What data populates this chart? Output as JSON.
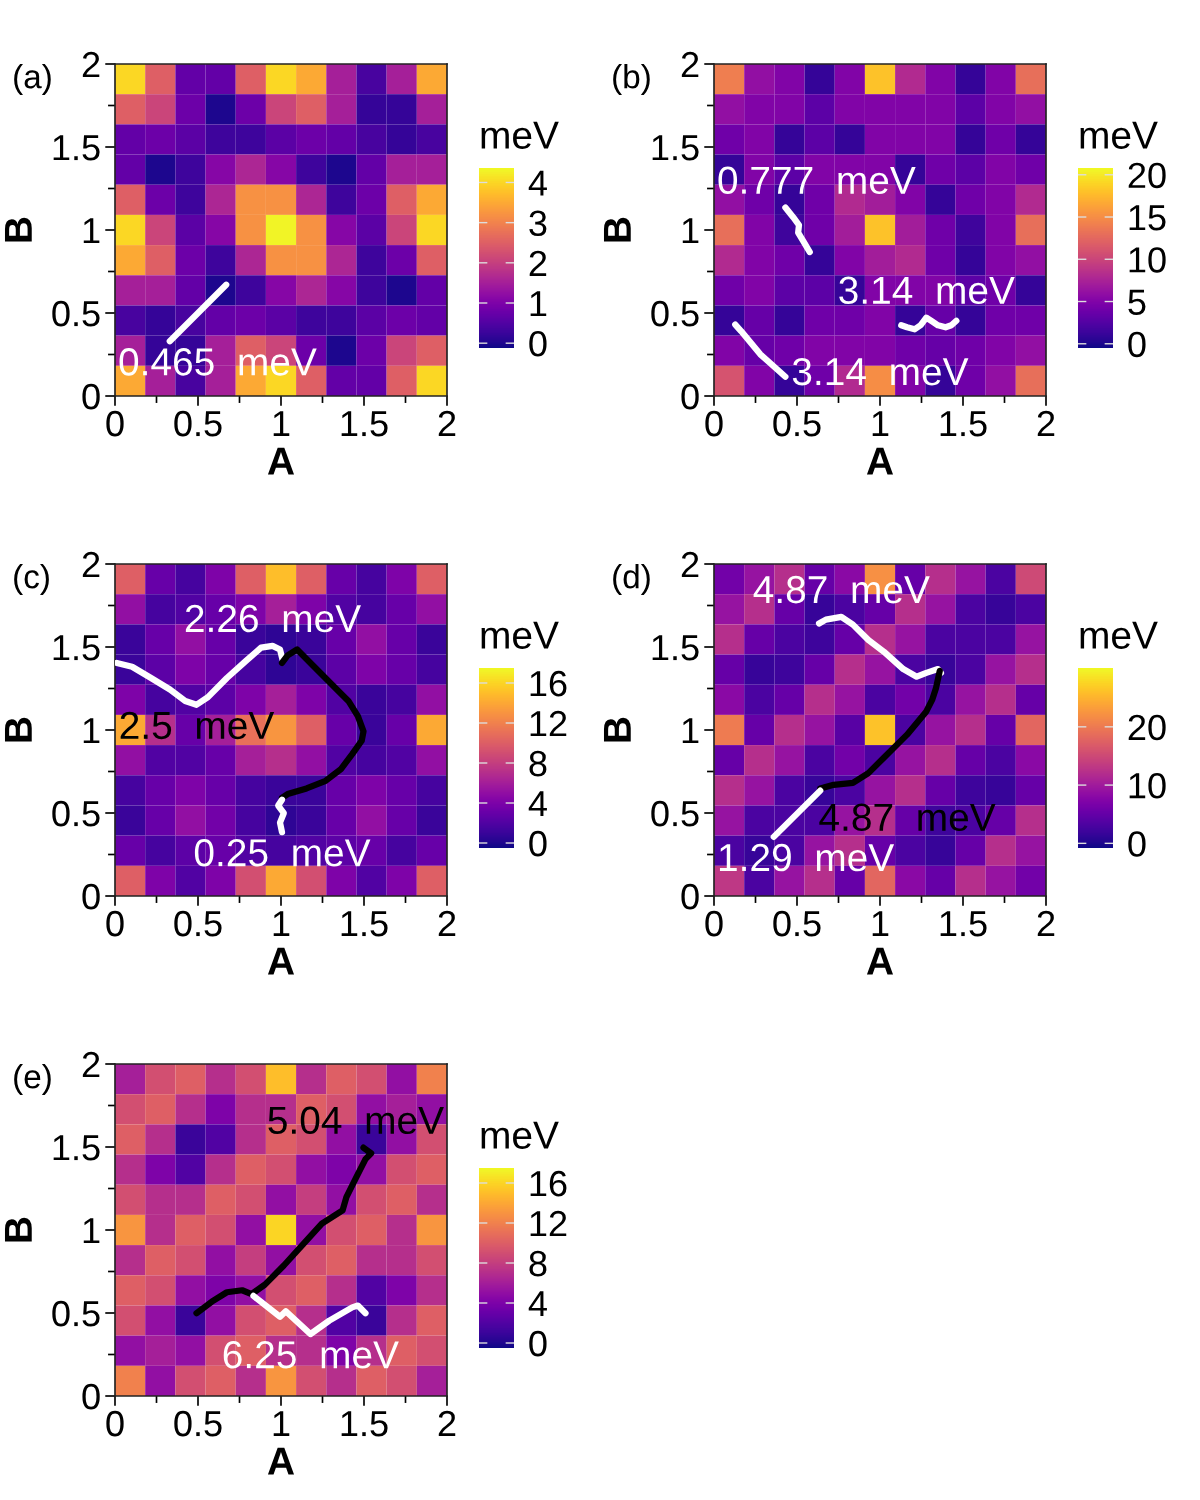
{
  "chart_data": [
    {
      "type": "heatmap",
      "title": "(a)",
      "xlabel": "A",
      "ylabel": "B",
      "clabel": "meV",
      "xlim": [
        0,
        2
      ],
      "ylim": [
        0,
        2
      ],
      "xticks": [
        0,
        {
          "value": 0.25,
          "label": null
        },
        0.5,
        {
          "value": 0.75,
          "label": null
        },
        1,
        {
          "value": 1.25,
          "label": null
        },
        1.5,
        {
          "value": 1.75,
          "label": null
        },
        2
      ],
      "yticks": [
        0,
        {
          "value": 0.25,
          "label": null
        },
        0.5,
        {
          "value": 0.75,
          "label": null
        },
        1,
        {
          "value": 1.25,
          "label": null
        },
        1.5,
        {
          "value": 1.75,
          "label": null
        },
        2
      ],
      "clim": [
        -0.12,
        4.36
      ],
      "cticks": [
        0,
        1,
        2,
        3,
        4
      ],
      "cells": [
        [
          4.0,
          2.5,
          0.7,
          0.7,
          2.5,
          4.0,
          3.5,
          1.5,
          0.4,
          1.5,
          3.5
        ],
        [
          2.5,
          2.1,
          0.8,
          0.0,
          0.8,
          2.1,
          2.5,
          1.5,
          0.2,
          0.2,
          1.5
        ],
        [
          0.7,
          0.8,
          0.6,
          0.3,
          0.3,
          0.6,
          0.8,
          0.7,
          0.4,
          0.2,
          0.4
        ],
        [
          0.7,
          0.0,
          0.3,
          1.1,
          1.6,
          1.1,
          0.3,
          0.0,
          0.7,
          1.5,
          1.5
        ],
        [
          2.5,
          0.8,
          0.3,
          1.6,
          3.2,
          3.2,
          1.6,
          0.3,
          0.8,
          2.5,
          3.5
        ],
        [
          4.0,
          2.1,
          0.6,
          1.1,
          3.2,
          4.3,
          3.2,
          1.1,
          0.6,
          2.1,
          4.0
        ],
        [
          3.5,
          2.5,
          0.8,
          0.3,
          1.6,
          3.2,
          3.2,
          1.6,
          0.3,
          0.8,
          2.5
        ],
        [
          1.5,
          1.5,
          0.7,
          0.0,
          0.3,
          1.1,
          1.6,
          1.1,
          0.3,
          0.0,
          0.7
        ],
        [
          0.4,
          0.2,
          0.4,
          0.7,
          0.8,
          0.6,
          0.3,
          0.3,
          0.6,
          0.8,
          0.7
        ],
        [
          1.5,
          0.2,
          0.2,
          1.5,
          2.5,
          2.1,
          0.8,
          0.0,
          0.8,
          2.1,
          2.5
        ],
        [
          3.5,
          1.5,
          0.4,
          1.5,
          3.5,
          4.0,
          2.5,
          0.7,
          0.7,
          2.5,
          4.0
        ]
      ],
      "series": [
        {
          "type": "line",
          "color": "#ffffff",
          "x": [
            0.33,
            0.67
          ],
          "values": [
            0.33,
            0.67
          ]
        }
      ],
      "annotations": [
        {
          "text": "0.465  meV",
          "x": 0.33,
          "y": 0.33
        }
      ]
    },
    {
      "type": "heatmap",
      "title": "(b)",
      "xlabel": "A",
      "ylabel": "B",
      "clabel": "meV",
      "xlim": [
        0,
        2
      ],
      "ylim": [
        0,
        2
      ],
      "xticks": [
        0,
        {
          "value": 0.25,
          "label": null
        },
        0.5,
        {
          "value": 0.75,
          "label": null
        },
        1,
        {
          "value": 1.25,
          "label": null
        },
        1.5,
        {
          "value": 1.75,
          "label": null
        },
        2
      ],
      "yticks": [
        0,
        {
          "value": 0.25,
          "label": null
        },
        0.5,
        {
          "value": 0.75,
          "label": null
        },
        1,
        {
          "value": 1.25,
          "label": null
        },
        1.5,
        {
          "value": 1.75,
          "label": null
        },
        2
      ],
      "clim": [
        -0.5,
        20.8
      ],
      "cticks": [
        0,
        5,
        10,
        15,
        20
      ],
      "cells": [
        [
          14,
          6,
          5,
          1,
          5,
          18,
          8,
          5,
          1,
          5,
          13
        ],
        [
          6,
          5,
          5,
          3,
          5,
          5,
          5,
          5,
          3,
          5,
          6
        ],
        [
          4,
          5,
          1,
          3,
          1,
          5,
          5,
          5,
          1,
          4,
          1
        ],
        [
          1,
          5,
          3,
          5,
          5,
          5,
          1,
          4,
          3,
          5,
          4
        ],
        [
          6,
          4,
          1,
          4,
          8,
          7,
          5,
          1,
          4,
          5,
          8
        ],
        [
          13,
          5,
          1.5,
          4,
          7,
          18,
          7,
          4,
          1.5,
          5,
          13
        ],
        [
          8,
          5,
          4,
          1,
          5,
          7,
          8,
          4,
          1,
          5,
          6
        ],
        [
          4,
          5,
          3,
          3,
          1,
          5,
          5,
          5,
          3,
          4,
          1
        ],
        [
          1,
          3.5,
          1,
          4,
          4,
          5,
          1,
          3.5,
          1,
          4,
          4
        ],
        [
          5,
          3.5,
          4,
          5,
          5,
          5,
          4,
          3.5,
          4,
          5,
          6
        ],
        [
          11,
          5,
          1,
          4,
          8,
          15,
          5,
          1,
          4,
          6,
          13
        ]
      ],
      "series": [
        {
          "type": "line",
          "color": "#ffffff",
          "x": [
            0.43,
            0.477,
            0.512,
            0.507,
            0.535,
            0.577
          ],
          "values": [
            1.135,
            1.077,
            1.03,
            0.984,
            0.937,
            0.867
          ]
        },
        {
          "type": "line",
          "color": "#ffffff",
          "x": [
            1.128,
            1.163,
            1.209,
            1.244,
            1.279,
            1.314,
            1.349,
            1.395,
            1.43,
            1.46
          ],
          "values": [
            0.426,
            0.414,
            0.402,
            0.426,
            0.472,
            0.449,
            0.426,
            0.414,
            0.426,
            0.453
          ]
        },
        {
          "type": "line",
          "color": "#ffffff",
          "x": [
            0.128,
            0.163,
            0.279,
            0.43
          ],
          "values": [
            0.43,
            0.391,
            0.251,
            0.116
          ]
        }
      ],
      "annotations": [
        {
          "text": "0.777  meV",
          "x": 0.43,
          "y": 1.135
        },
        {
          "text": "3.14  meV",
          "x": 1.279,
          "y": 0.472
        },
        {
          "text": "3.14  meV",
          "x": 0.43,
          "y": 0.116
        }
      ]
    },
    {
      "type": "heatmap",
      "title": "(c)",
      "xlabel": "A",
      "ylabel": "B",
      "clabel": "meV",
      "xlim": [
        0,
        2
      ],
      "ylim": [
        0,
        2
      ],
      "xticks": [
        0,
        {
          "value": 0.25,
          "label": null
        },
        0.5,
        {
          "value": 0.75,
          "label": null
        },
        1,
        {
          "value": 1.25,
          "label": null
        },
        1.5,
        {
          "value": 1.75,
          "label": null
        },
        2
      ],
      "yticks": [
        0,
        {
          "value": 0.25,
          "label": null
        },
        0.5,
        {
          "value": 0.75,
          "label": null
        },
        1,
        {
          "value": 1.25,
          "label": null
        },
        1.5,
        {
          "value": 1.75,
          "label": null
        },
        2
      ],
      "clim": [
        -0.5,
        17.5
      ],
      "cticks": [
        0,
        4,
        8,
        12,
        16
      ],
      "cells": [
        [
          10,
          3,
          1.5,
          4,
          10,
          15,
          10,
          3,
          1.5,
          4,
          10
        ],
        [
          5,
          1.5,
          2,
          3,
          4,
          6,
          4,
          2,
          1.5,
          3,
          5
        ],
        [
          1,
          3,
          5,
          3,
          1,
          0.5,
          1,
          3,
          5,
          3,
          1
        ],
        [
          1,
          2.5,
          4,
          3,
          1.5,
          0.5,
          1,
          2.5,
          4,
          3,
          1.5
        ],
        [
          4,
          1.5,
          2,
          2.5,
          4,
          6,
          4,
          2,
          1,
          1.5,
          5
        ],
        [
          14,
          7,
          3,
          6,
          11,
          13,
          10,
          3,
          1,
          3,
          14
        ],
        [
          5,
          2,
          2,
          3,
          6,
          7,
          5,
          2,
          1.5,
          2,
          5
        ],
        [
          1.5,
          3,
          4,
          3,
          1.5,
          1,
          1,
          3,
          4,
          3,
          1.5
        ],
        [
          1,
          3,
          5,
          3.5,
          1.5,
          0.5,
          1,
          3,
          5,
          3,
          1
        ],
        [
          3,
          1.5,
          2.5,
          3,
          2,
          1.5,
          2,
          2.5,
          3,
          1.5,
          3
        ],
        [
          10,
          4,
          2,
          4,
          9,
          14,
          9,
          4,
          2,
          4,
          10
        ]
      ],
      "series": [
        {
          "type": "line",
          "color": "#ffffff",
          "x": [
            0.011,
            0.103,
            0.217,
            0.331,
            0.423,
            0.491,
            0.56,
            0.674,
            0.789,
            0.88,
            0.949,
            0.994,
            1.01
          ],
          "values": [
            1.404,
            1.381,
            1.313,
            1.244,
            1.175,
            1.152,
            1.198,
            1.313,
            1.416,
            1.496,
            1.507,
            1.485,
            1.42
          ]
        },
        {
          "type": "line",
          "color": "#000000",
          "x": [
            1.006,
            1.04,
            1.097,
            1.2,
            1.314,
            1.406,
            1.463,
            1.497,
            1.486,
            1.429,
            1.36,
            1.269,
            1.154,
            1.04,
            1.006
          ],
          "values": [
            1.404,
            1.45,
            1.485,
            1.381,
            1.267,
            1.175,
            1.084,
            0.992,
            0.935,
            0.855,
            0.763,
            0.694,
            0.648,
            0.614,
            0.591
          ]
        },
        {
          "type": "line",
          "color": "#ffffff",
          "x": [
            1.006,
            0.983,
            1.017,
            0.994,
            1.006
          ],
          "values": [
            0.58,
            0.545,
            0.499,
            0.442,
            0.385
          ]
        }
      ],
      "annotations": [
        {
          "text": "2.26  meV",
          "x": 0.949,
          "y": 1.507
        },
        {
          "text": "2.5  meV",
          "x": 0.491,
          "y": 1.152
        },
        {
          "text": "0.25  meV",
          "x": 1.006,
          "y": 0.385
        }
      ]
    },
    {
      "type": "heatmap",
      "title": "(d)",
      "xlabel": "A",
      "ylabel": "B",
      "clabel": "meV",
      "xlim": [
        0,
        2
      ],
      "ylim": [
        0,
        2
      ],
      "xticks": [
        0,
        {
          "value": 0.25,
          "label": null
        },
        0.5,
        {
          "value": 0.75,
          "label": null
        },
        1,
        {
          "value": 1.25,
          "label": null
        },
        1.5,
        {
          "value": 1.75,
          "label": null
        },
        2
      ],
      "yticks": [
        0,
        {
          "value": 0.25,
          "label": null
        },
        0.5,
        {
          "value": 0.75,
          "label": null
        },
        1,
        {
          "value": 1.25,
          "label": null
        },
        1.5,
        {
          "value": 1.75,
          "label": null
        },
        2
      ],
      "clim": [
        -0.8,
        30.1
      ],
      "cticks": [
        0,
        10,
        20
      ],
      "cells": [
        [
          6,
          9,
          12,
          5,
          8,
          22,
          5,
          12,
          9,
          3,
          15
        ],
        [
          9,
          12,
          5,
          1.5,
          3,
          5,
          12,
          9,
          3,
          1.5,
          3
        ],
        [
          12,
          5,
          3,
          2,
          5,
          12,
          9,
          3,
          3,
          3,
          9
        ],
        [
          5,
          1.5,
          2,
          5,
          12,
          9,
          3,
          1.5,
          3,
          9,
          12
        ],
        [
          8,
          3,
          5,
          12,
          9,
          3,
          6,
          3,
          9,
          12,
          5
        ],
        [
          20,
          5,
          12,
          9,
          4,
          26,
          3,
          9,
          12,
          5,
          18
        ],
        [
          5,
          12,
          9,
          3,
          6,
          3,
          9,
          12,
          5,
          3,
          8
        ],
        [
          12,
          9,
          3,
          1.5,
          3,
          9,
          12,
          5,
          2,
          1.5,
          5
        ],
        [
          9,
          3,
          3,
          3,
          9,
          12,
          5,
          2,
          3,
          5,
          12
        ],
        [
          3,
          1.5,
          3,
          9,
          12,
          5,
          3,
          1.5,
          5,
          12,
          9
        ],
        [
          13,
          3,
          9,
          12,
          5,
          18,
          8,
          5,
          12,
          9,
          6
        ]
      ],
      "series": [
        {
          "type": "line",
          "color": "#ffffff",
          "x": [
            0.633,
            0.674,
            0.767,
            0.837,
            0.93,
            1.023,
            1.14,
            1.221,
            1.279,
            1.349,
            1.367
          ],
          "values": [
            1.642,
            1.665,
            1.681,
            1.635,
            1.542,
            1.472,
            1.367,
            1.321,
            1.344,
            1.367,
            1.344
          ]
        },
        {
          "type": "line",
          "color": "#000000",
          "x": [
            1.36,
            1.337,
            1.314,
            1.279,
            1.163,
            1.023,
            0.93,
            0.837,
            0.721,
            0.64
          ],
          "values": [
            1.356,
            1.251,
            1.181,
            1.112,
            0.972,
            0.833,
            0.74,
            0.681,
            0.67,
            0.647
          ]
        },
        {
          "type": "line",
          "color": "#ffffff",
          "x": [
            0.64,
            0.36
          ],
          "values": [
            0.635,
            0.356
          ]
        }
      ],
      "annotations": [
        {
          "text": "4.87  meV",
          "x": 0.767,
          "y": 1.681
        },
        {
          "text": "4.87  meV",
          "x": 1.163,
          "y": 0.972
        },
        {
          "text": "1.29  meV",
          "x": 0.36,
          "y": 0.356
        }
      ]
    },
    {
      "type": "heatmap",
      "title": "(e)",
      "xlabel": "A",
      "ylabel": "B",
      "clabel": "meV",
      "xlim": [
        0,
        2
      ],
      "ylim": [
        0,
        2
      ],
      "xticks": [
        0,
        {
          "value": 0.25,
          "label": null
        },
        0.5,
        {
          "value": 0.75,
          "label": null
        },
        1,
        {
          "value": 1.25,
          "label": null
        },
        1.5,
        {
          "value": 1.75,
          "label": null
        },
        2
      ],
      "yticks": [
        0,
        {
          "value": 0.25,
          "label": null
        },
        0.5,
        {
          "value": 0.75,
          "label": null
        },
        1,
        {
          "value": 1.25,
          "label": null
        },
        1.5,
        {
          "value": 1.75,
          "label": null
        },
        2
      ],
      "clim": [
        -0.5,
        17.5
      ],
      "cticks": [
        0,
        4,
        8,
        12,
        16
      ],
      "cells": [
        [
          6,
          9,
          10,
          7,
          9,
          15,
          7,
          10,
          9,
          5,
          12
        ],
        [
          9,
          10,
          7,
          4,
          7,
          7,
          10,
          9,
          5,
          6,
          5
        ],
        [
          10,
          7,
          1,
          2,
          7,
          10,
          9,
          5,
          1,
          5,
          9
        ],
        [
          7,
          4,
          2,
          7,
          10,
          9,
          5,
          4,
          5,
          9,
          10
        ],
        [
          9,
          7,
          7,
          10,
          9,
          5,
          8,
          5,
          9,
          10,
          7
        ],
        [
          13,
          7,
          10,
          9,
          5,
          16,
          5,
          9,
          10,
          7,
          13
        ],
        [
          7,
          10,
          9,
          5,
          8,
          5,
          9,
          10,
          7,
          7,
          9
        ],
        [
          10,
          9,
          5,
          4,
          5,
          9,
          10,
          7,
          2,
          4,
          7
        ],
        [
          9,
          5,
          1,
          5,
          9,
          10,
          7,
          2,
          1,
          7,
          10
        ],
        [
          5,
          6,
          5,
          9,
          10,
          7,
          7,
          4,
          7,
          10,
          9
        ],
        [
          12,
          5,
          9,
          10,
          7,
          13,
          9,
          7,
          10,
          9,
          6
        ]
      ],
      "series": [
        {
          "type": "line",
          "color": "#000000",
          "x": [
            0.491,
            0.583,
            0.674,
            0.766,
            0.823,
            0.903,
            1.017,
            1.131,
            1.246,
            1.371,
            1.394,
            1.451,
            1.509,
            1.543,
            1.497
          ],
          "values": [
            0.499,
            0.568,
            0.625,
            0.637,
            0.614,
            0.671,
            0.786,
            0.912,
            1.038,
            1.118,
            1.198,
            1.313,
            1.427,
            1.462,
            1.496
          ]
        },
        {
          "type": "line",
          "color": "#ffffff",
          "x": [
            0.834,
            0.994,
            1.029,
            1.177,
            1.291,
            1.429,
            1.463,
            1.509
          ],
          "values": [
            0.603,
            0.477,
            0.511,
            0.373,
            0.454,
            0.534,
            0.545,
            0.499
          ]
        }
      ],
      "annotations": [
        {
          "text": "5.04  meV",
          "x": 1.497,
          "y": 1.496
        },
        {
          "text": "6.25  meV",
          "x": 1.177,
          "y": 0.373
        }
      ]
    }
  ]
}
